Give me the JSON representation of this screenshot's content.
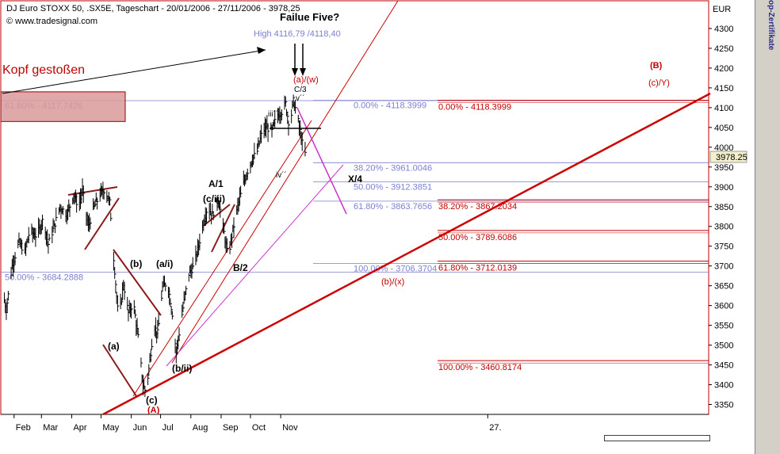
{
  "header": {
    "title": "DJ Euro STOXX 50, .SX5E, Tageschart - 20/01/2006 - 27/11/2006 - 3978,25",
    "source": "© www.tradesignal.com",
    "currency": "EUR"
  },
  "side_label": "op-Zertifikate",
  "current_price_label": "3978.25",
  "chart_data": {
    "type": "candlestick",
    "title": "DJ Euro STOXX 50, .SX5E, Tageschart - 20/01/2006 - 27/11/2006 - 3978,25",
    "xlabel": "",
    "ylabel": "EUR",
    "ylim": [
      3325,
      4370
    ],
    "y_ticks": [
      3350,
      3400,
      3450,
      3500,
      3550,
      3600,
      3650,
      3700,
      3750,
      3800,
      3850,
      3900,
      3950,
      4000,
      4050,
      4100,
      4150,
      4200,
      4250,
      4300
    ],
    "x_ticks": [
      {
        "label": "Feb",
        "day": 12
      },
      {
        "label": "Mar",
        "day": 40
      },
      {
        "label": "Apr",
        "day": 71
      },
      {
        "label": "May",
        "day": 101
      },
      {
        "label": "Jun",
        "day": 132
      },
      {
        "label": "Jul",
        "day": 162
      },
      {
        "label": "Aug",
        "day": 193
      },
      {
        "label": "Sep",
        "day": 224
      },
      {
        "label": "Oct",
        "day": 254
      },
      {
        "label": "Nov",
        "day": 285
      },
      {
        "label": "27.",
        "day": 497
      }
    ],
    "price_path": [
      [
        "2006-01-20",
        3640
      ],
      [
        "2006-01-24",
        3590
      ],
      [
        "2006-01-30",
        3700
      ],
      [
        "2006-02-06",
        3760
      ],
      [
        "2006-02-12",
        3735
      ],
      [
        "2006-02-17",
        3790
      ],
      [
        "2006-02-24",
        3775
      ],
      [
        "2006-03-03",
        3820
      ],
      [
        "2006-03-08",
        3755
      ],
      [
        "2006-03-14",
        3800
      ],
      [
        "2006-03-20",
        3850
      ],
      [
        "2006-03-27",
        3830
      ],
      [
        "2006-04-03",
        3880
      ],
      [
        "2006-04-08",
        3850
      ],
      [
        "2006-04-12",
        3890
      ],
      [
        "2006-04-18",
        3800
      ],
      [
        "2006-04-24",
        3850
      ],
      [
        "2006-04-30",
        3880
      ],
      [
        "2006-05-05",
        3895
      ],
      [
        "2006-05-10",
        3860
      ],
      [
        "2006-05-14",
        3720
      ],
      [
        "2006-05-19",
        3560
      ],
      [
        "2006-05-24",
        3655
      ],
      [
        "2006-05-29",
        3580
      ],
      [
        "2006-06-03",
        3610
      ],
      [
        "2006-06-08",
        3520
      ],
      [
        "2006-06-13",
        3400
      ],
      [
        "2006-06-16",
        3380
      ],
      [
        "2006-06-20",
        3460
      ],
      [
        "2006-06-24",
        3550
      ],
      [
        "2006-06-28",
        3530
      ],
      [
        "2006-07-03",
        3645
      ],
      [
        "2006-07-08",
        3660
      ],
      [
        "2006-07-13",
        3580
      ],
      [
        "2006-07-17",
        3480
      ],
      [
        "2006-07-20",
        3530
      ],
      [
        "2006-07-25",
        3610
      ],
      [
        "2006-07-30",
        3680
      ],
      [
        "2006-08-04",
        3700
      ],
      [
        "2006-08-08",
        3740
      ],
      [
        "2006-08-13",
        3800
      ],
      [
        "2006-08-18",
        3850
      ],
      [
        "2006-08-23",
        3830
      ],
      [
        "2006-08-29",
        3870
      ],
      [
        "2006-09-03",
        3800
      ],
      [
        "2006-09-08",
        3720
      ],
      [
        "2006-09-13",
        3790
      ],
      [
        "2006-09-18",
        3850
      ],
      [
        "2006-09-23",
        3900
      ],
      [
        "2006-09-28",
        3940
      ],
      [
        "2006-10-03",
        3970
      ],
      [
        "2006-10-08",
        3990
      ],
      [
        "2006-10-13",
        4040
      ],
      [
        "2006-10-18",
        4050
      ],
      [
        "2006-10-23",
        4040
      ],
      [
        "2006-10-28",
        4080
      ],
      [
        "2006-11-02",
        4090
      ],
      [
        "2006-11-06",
        4110
      ],
      [
        "2006-11-10",
        4050
      ],
      [
        "2006-11-14",
        4116.79
      ],
      [
        "2006-11-17",
        4090
      ],
      [
        "2006-11-21",
        4040
      ],
      [
        "2006-11-24",
        3995
      ],
      [
        "2006-11-27",
        3978.25
      ]
    ],
    "annotations": {
      "kopf": "Kopf gestoßen",
      "failure": "Failue Five?",
      "high": "High 4116,79 /4118,40",
      "waves": [
        {
          "text": "(a)/(w)",
          "color": "red"
        },
        {
          "text": "C/3",
          "color": "black"
        },
        {
          "text": "v´´",
          "color": "black"
        },
        {
          "text": "iii´´",
          "color": "black"
        },
        {
          "text": "iv´´",
          "color": "black"
        },
        {
          "text": "X/4",
          "color": "black"
        },
        {
          "text": "A/1",
          "color": "black"
        },
        {
          "text": "(c/iii)",
          "color": "black"
        },
        {
          "text": "B/2",
          "color": "black"
        },
        {
          "text": "(b)",
          "color": "black"
        },
        {
          "text": "(a/i)",
          "color": "black"
        },
        {
          "text": "(a)",
          "color": "black"
        },
        {
          "text": "(b/ii)",
          "color": "black"
        },
        {
          "text": "(c)",
          "color": "black"
        },
        {
          "text": "(A)",
          "color": "red"
        },
        {
          "text": "(B)",
          "color": "red"
        },
        {
          "text": "(c)/Y)",
          "color": "red"
        },
        {
          "text": "(b)/(x)",
          "color": "red"
        }
      ],
      "fib_blue": [
        {
          "label": "61.80% - 4117.7426",
          "value": 4117.7426
        },
        {
          "label": "0.00% - 4118.3999",
          "value": 4118.3999
        },
        {
          "label": "38.20% - 3961.0046",
          "value": 3961.0046
        },
        {
          "label": "50.00% - 3912.3851",
          "value": 3912.3851
        },
        {
          "label": "61.80% - 3863.7656",
          "value": 3863.7656
        },
        {
          "label": "100.00% - 3706.3704",
          "value": 3706.3704
        },
        {
          "label": "50.00% - 3684.2888",
          "value": 3684.2888
        }
      ],
      "fib_red": [
        {
          "label": "0.00% - 4118.3999",
          "value": 4118.3999
        },
        {
          "label": "38.20% - 3867.2034",
          "value": 3867.2034
        },
        {
          "label": "50.00% - 3789.6086",
          "value": 3789.6086
        },
        {
          "label": "61.80% - 3712.0139",
          "value": 3712.0139
        },
        {
          "label": "100.00% - 3460.8174",
          "value": 3460.8174
        }
      ]
    },
    "colors": {
      "trendline": "#cc0000",
      "fib_blue": "#7b7fd0",
      "fib_red": "#c00000",
      "box_fill": "#d99a9a",
      "magenta": "#cc33cc"
    }
  }
}
